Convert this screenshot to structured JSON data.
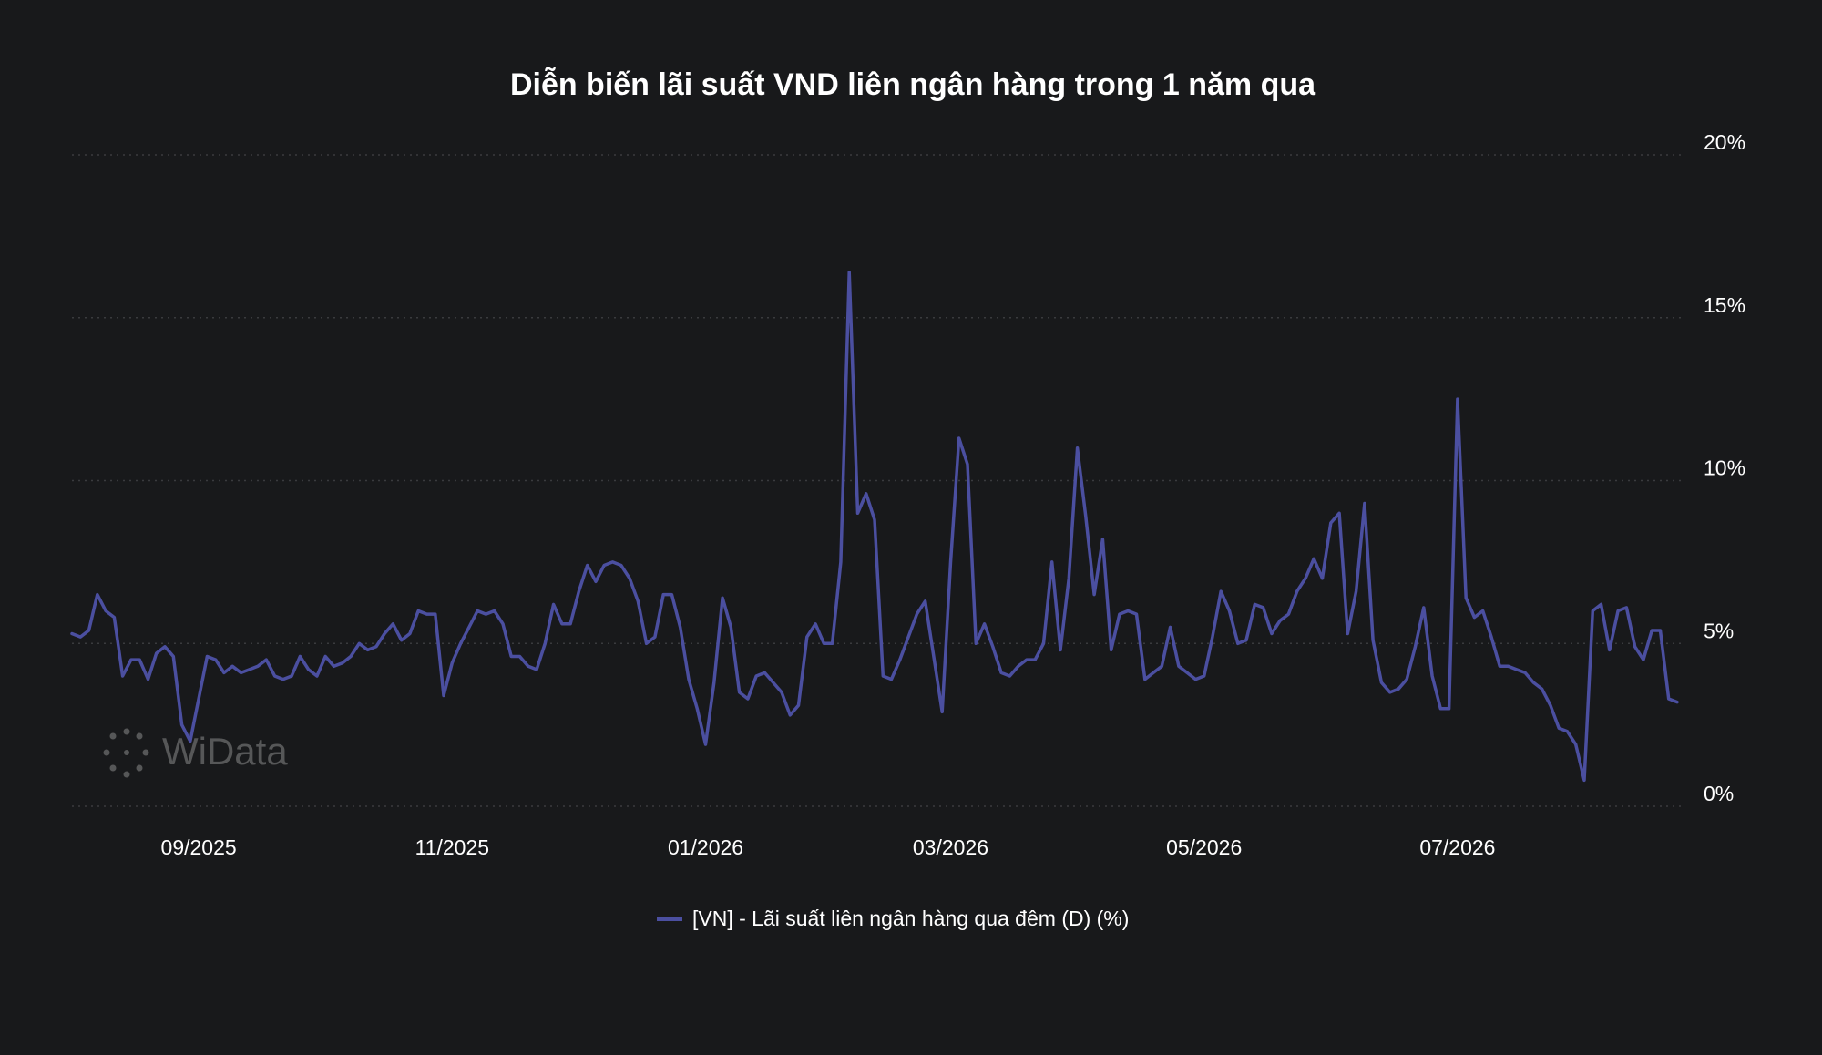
{
  "chart_data": {
    "type": "line",
    "title": "Diễn biến lãi suất VND liên ngân hàng trong 1 năm qua",
    "watermark": "WiData",
    "categories": [
      null,
      null,
      null,
      null,
      null,
      null,
      null,
      null,
      null,
      null,
      null,
      null,
      null,
      null,
      null,
      "09/2025",
      null,
      null,
      null,
      null,
      null,
      null,
      null,
      null,
      null,
      null,
      null,
      null,
      null,
      null,
      null,
      null,
      null,
      null,
      null,
      null,
      null,
      null,
      null,
      null,
      null,
      null,
      null,
      null,
      null,
      "11/2025",
      null,
      null,
      null,
      null,
      null,
      null,
      null,
      null,
      null,
      null,
      null,
      null,
      null,
      null,
      null,
      null,
      null,
      null,
      null,
      null,
      null,
      null,
      null,
      null,
      null,
      null,
      null,
      null,
      null,
      "01/2026",
      null,
      null,
      null,
      null,
      null,
      null,
      null,
      null,
      null,
      null,
      null,
      null,
      null,
      null,
      null,
      null,
      null,
      null,
      null,
      null,
      null,
      null,
      null,
      null,
      null,
      null,
      null,
      null,
      "03/2026",
      null,
      null,
      null,
      null,
      null,
      null,
      null,
      null,
      null,
      null,
      null,
      null,
      null,
      null,
      null,
      null,
      null,
      null,
      null,
      null,
      null,
      null,
      null,
      null,
      null,
      null,
      null,
      null,
      null,
      "05/2026",
      null,
      null,
      null,
      null,
      null,
      null,
      null,
      null,
      null,
      null,
      null,
      null,
      null,
      null,
      null,
      null,
      null,
      null,
      null,
      null,
      null,
      null,
      null,
      null,
      null,
      null,
      null,
      null,
      null,
      "07/2026",
      null,
      null,
      null,
      null,
      null,
      null,
      null,
      null,
      null,
      null,
      null,
      null,
      null,
      null,
      null,
      null,
      null,
      null,
      null,
      null,
      null,
      null,
      null,
      null,
      null,
      null
    ],
    "series": [
      {
        "name": "[VN] - Lãi suất liên ngân hàng qua đêm (D) (%)",
        "color": "#4b4fa0",
        "values": [
          5.3,
          5.2,
          5.4,
          6.5,
          6.0,
          5.8,
          4.0,
          4.5,
          4.5,
          3.9,
          4.7,
          4.9,
          4.6,
          2.5,
          2.0,
          3.3,
          4.6,
          4.5,
          4.1,
          4.3,
          4.1,
          4.2,
          4.3,
          4.5,
          4.0,
          3.9,
          4.0,
          4.6,
          4.2,
          4.0,
          4.6,
          4.3,
          4.4,
          4.6,
          5.0,
          4.8,
          4.9,
          5.3,
          5.6,
          5.1,
          5.3,
          6.0,
          5.9,
          5.9,
          3.4,
          4.4,
          5.0,
          5.5,
          6.0,
          5.9,
          6.0,
          5.6,
          4.6,
          4.6,
          4.3,
          4.2,
          5.0,
          6.2,
          5.6,
          5.6,
          6.6,
          7.4,
          6.9,
          7.4,
          7.5,
          7.4,
          7.0,
          6.3,
          5.0,
          5.2,
          6.5,
          6.5,
          5.5,
          3.9,
          3.0,
          1.9,
          3.8,
          6.4,
          5.5,
          3.5,
          3.3,
          4.0,
          4.1,
          3.8,
          3.5,
          2.8,
          3.1,
          5.2,
          5.6,
          5.0,
          5.0,
          7.5,
          16.4,
          9.0,
          9.6,
          8.8,
          4.0,
          3.9,
          4.5,
          5.2,
          5.9,
          6.3,
          4.6,
          2.9,
          7.5,
          11.3,
          10.5,
          5.0,
          5.6,
          4.9,
          4.1,
          4.0,
          4.3,
          4.5,
          4.5,
          5.0,
          7.5,
          4.8,
          7.0,
          11.0,
          8.9,
          6.5,
          8.2,
          4.8,
          5.9,
          6.0,
          5.9,
          3.9,
          4.1,
          4.3,
          5.5,
          4.3,
          4.1,
          3.9,
          4.0,
          5.2,
          6.6,
          6.0,
          5.0,
          5.1,
          6.2,
          6.1,
          5.3,
          5.7,
          5.9,
          6.6,
          7.0,
          7.6,
          7.0,
          8.7,
          9.0,
          5.3,
          6.6,
          9.3,
          5.1,
          3.8,
          3.5,
          3.6,
          3.9,
          4.9,
          6.1,
          4.0,
          3.0,
          3.0,
          12.5,
          6.4,
          5.8,
          6.0,
          5.2,
          4.3,
          4.3,
          4.2,
          4.1,
          3.8,
          3.6,
          3.1,
          2.4,
          2.3,
          1.9,
          0.8,
          6.0,
          6.2,
          4.8,
          6.0,
          6.1,
          4.9,
          4.5,
          5.4,
          5.4,
          3.3,
          3.2
        ]
      }
    ],
    "ylim": [
      0,
      20
    ],
    "yticks": [
      {
        "value": 0,
        "label": "0%"
      },
      {
        "value": 5,
        "label": "5%"
      },
      {
        "value": 10,
        "label": "10%"
      },
      {
        "value": 15,
        "label": "15%"
      },
      {
        "value": 20,
        "label": "20%"
      }
    ],
    "grid": true
  }
}
